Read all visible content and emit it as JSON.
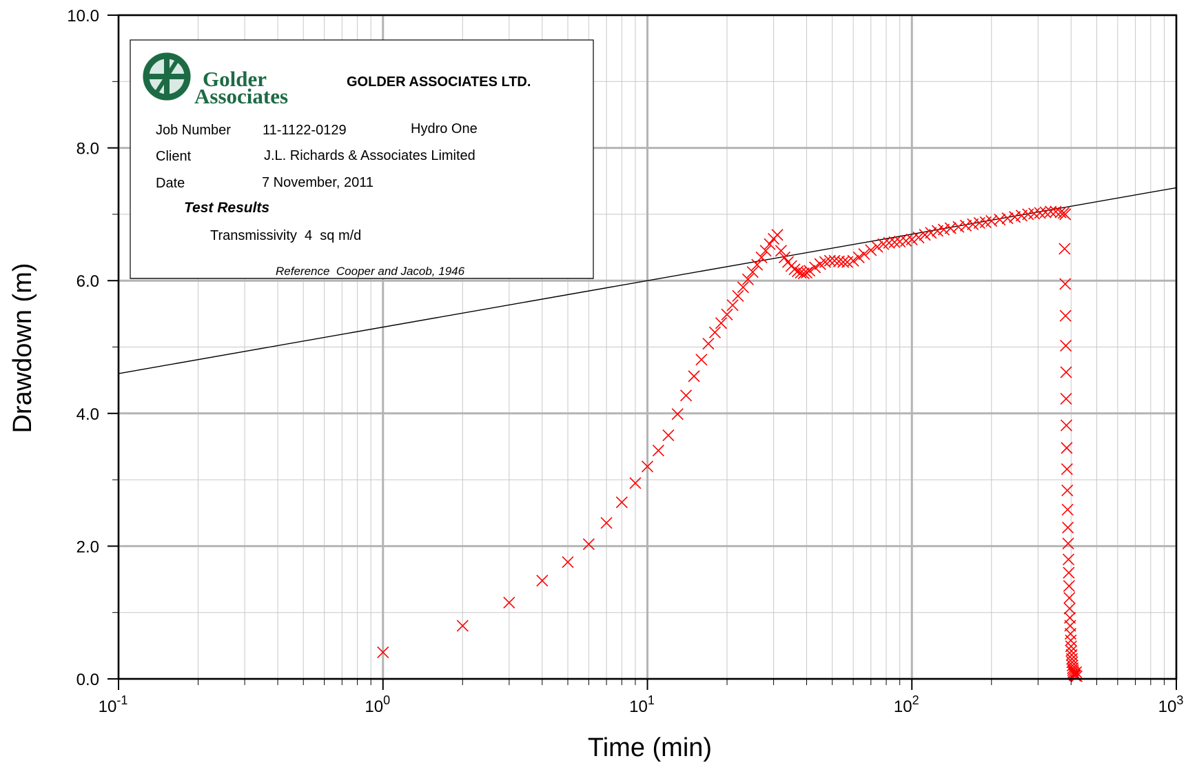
{
  "chart_data": {
    "type": "scatter",
    "x_scale": "log",
    "xlabel": "Time (min)",
    "ylabel": "Drawdown (m)",
    "xlim": [
      0.1,
      1000
    ],
    "ylim": [
      0,
      10
    ],
    "x_tick_labels": [
      {
        "base": "10",
        "exp": "-1",
        "value": 0.1
      },
      {
        "base": "10",
        "exp": "0",
        "value": 1
      },
      {
        "base": "10",
        "exp": "1",
        "value": 10
      },
      {
        "base": "10",
        "exp": "2",
        "value": 100
      },
      {
        "base": "10",
        "exp": "3",
        "value": 1000
      }
    ],
    "y_tick_labels": [
      {
        "label": "0.0",
        "value": 0
      },
      {
        "label": "2.0",
        "value": 2
      },
      {
        "label": "4.0",
        "value": 4
      },
      {
        "label": "6.0",
        "value": 6
      },
      {
        "label": "8.0",
        "value": 8
      },
      {
        "label": "10.0",
        "value": 10
      }
    ],
    "grid": true,
    "marker_color": "#ff0000",
    "marker": "x",
    "fit_line": {
      "x": [
        0.1,
        1000
      ],
      "y": [
        4.6,
        7.4
      ],
      "color": "#000000"
    },
    "series": [
      {
        "points": [
          [
            1,
            0.4
          ],
          [
            2,
            0.8
          ],
          [
            3,
            1.15
          ],
          [
            4,
            1.48
          ],
          [
            5,
            1.76
          ],
          [
            6,
            2.03
          ],
          [
            7,
            2.35
          ],
          [
            8,
            2.66
          ],
          [
            9,
            2.95
          ],
          [
            10,
            3.2
          ],
          [
            11,
            3.44
          ],
          [
            12,
            3.67
          ],
          [
            13,
            3.99
          ],
          [
            14,
            4.27
          ],
          [
            15,
            4.56
          ],
          [
            16,
            4.81
          ],
          [
            17,
            5.05
          ],
          [
            18,
            5.22
          ],
          [
            19,
            5.36
          ],
          [
            20,
            5.49
          ],
          [
            21,
            5.63
          ],
          [
            22,
            5.77
          ],
          [
            23,
            5.9
          ],
          [
            24,
            6.02
          ],
          [
            25,
            6.13
          ],
          [
            26,
            6.24
          ],
          [
            27,
            6.35
          ],
          [
            28,
            6.45
          ],
          [
            29,
            6.55
          ],
          [
            30,
            6.63
          ],
          [
            31,
            6.69
          ],
          [
            32,
            6.45
          ],
          [
            33,
            6.35
          ],
          [
            34,
            6.28
          ],
          [
            35,
            6.22
          ],
          [
            36,
            6.17
          ],
          [
            37,
            6.14
          ],
          [
            38,
            6.12
          ],
          [
            39,
            6.11
          ],
          [
            40,
            6.12
          ],
          [
            41,
            6.15
          ],
          [
            43,
            6.2
          ],
          [
            45,
            6.25
          ],
          [
            47,
            6.28
          ],
          [
            49,
            6.3
          ],
          [
            51,
            6.3
          ],
          [
            53,
            6.29
          ],
          [
            55,
            6.28
          ],
          [
            57,
            6.28
          ],
          [
            60,
            6.3
          ],
          [
            63,
            6.35
          ],
          [
            66,
            6.4
          ],
          [
            70,
            6.46
          ],
          [
            74,
            6.51
          ],
          [
            78,
            6.55
          ],
          [
            82,
            6.57
          ],
          [
            86,
            6.58
          ],
          [
            90,
            6.59
          ],
          [
            95,
            6.6
          ],
          [
            100,
            6.62
          ],
          [
            106,
            6.65
          ],
          [
            112,
            6.69
          ],
          [
            118,
            6.72
          ],
          [
            125,
            6.75
          ],
          [
            132,
            6.77
          ],
          [
            140,
            6.79
          ],
          [
            150,
            6.81
          ],
          [
            160,
            6.83
          ],
          [
            170,
            6.85
          ],
          [
            180,
            6.87
          ],
          [
            190,
            6.88
          ],
          [
            200,
            6.9
          ],
          [
            215,
            6.92
          ],
          [
            230,
            6.94
          ],
          [
            245,
            6.96
          ],
          [
            260,
            6.98
          ],
          [
            275,
            7.0
          ],
          [
            290,
            7.01
          ],
          [
            305,
            7.02
          ],
          [
            320,
            7.03
          ],
          [
            335,
            7.04
          ],
          [
            350,
            7.04
          ],
          [
            365,
            7.03
          ],
          [
            375,
            7.02
          ],
          [
            380,
            7.0
          ],
          [
            378,
            6.48
          ],
          [
            380,
            5.95
          ],
          [
            381,
            5.47
          ],
          [
            382,
            5.02
          ],
          [
            383,
            4.62
          ],
          [
            383,
            4.22
          ],
          [
            384,
            3.82
          ],
          [
            385,
            3.48
          ],
          [
            386,
            3.16
          ],
          [
            387,
            2.84
          ],
          [
            388,
            2.55
          ],
          [
            389,
            2.28
          ],
          [
            390,
            2.04
          ],
          [
            391,
            1.8
          ],
          [
            392,
            1.6
          ],
          [
            393,
            1.4
          ],
          [
            394,
            1.22
          ],
          [
            395,
            1.06
          ],
          [
            396,
            0.92
          ],
          [
            397,
            0.8
          ],
          [
            398,
            0.68
          ],
          [
            399,
            0.58
          ],
          [
            400,
            0.49
          ],
          [
            401,
            0.42
          ],
          [
            402,
            0.36
          ],
          [
            403,
            0.3
          ],
          [
            404,
            0.25
          ],
          [
            405,
            0.2
          ],
          [
            406,
            0.16
          ],
          [
            407,
            0.13
          ],
          [
            408,
            0.1
          ],
          [
            410,
            0.08
          ],
          [
            412,
            0.06
          ],
          [
            415,
            0.05
          ],
          [
            418,
            0.1
          ],
          [
            420,
            0.04
          ]
        ]
      }
    ]
  },
  "info_box": {
    "logo_text_line1": "Golder",
    "logo_text_line2": "Associates",
    "company": "GOLDER ASSOCIATES LTD.",
    "job_number_label": "Job Number",
    "job_number": "11-1122-0129",
    "project": "Hydro One",
    "client_label": "Client",
    "client": "J.L. Richards & Associates Limited",
    "date_label": "Date",
    "date": "7 November, 2011",
    "results_heading": "Test Results",
    "transmissivity": "Transmissivity  4  sq m/d",
    "reference": "Reference  Cooper and Jacob, 1946",
    "logo_color": "#1d6b45"
  }
}
